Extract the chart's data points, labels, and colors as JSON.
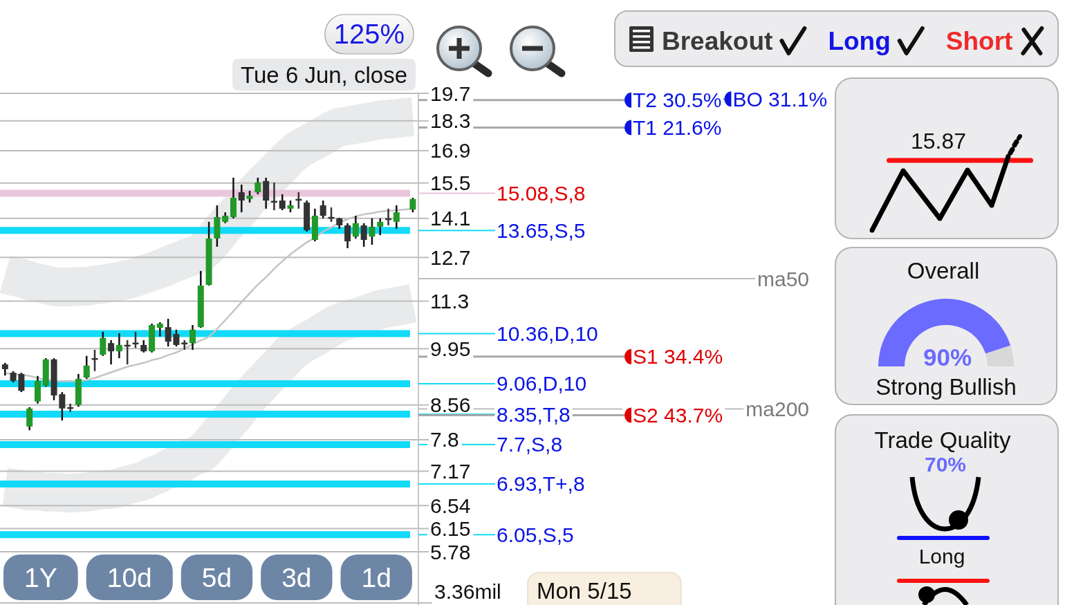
{
  "chart_data": [
    {
      "type": "candlestick",
      "categories": [
        null,
        null,
        null,
        null,
        null,
        null,
        null,
        null,
        null,
        null,
        null,
        null,
        null,
        null,
        null,
        null,
        null,
        null,
        null,
        null,
        null,
        null,
        null,
        null,
        null,
        null,
        null,
        null,
        null,
        null,
        null,
        null,
        null,
        null,
        null,
        null,
        null,
        null,
        null,
        null,
        null,
        null,
        null,
        null,
        null,
        null,
        null,
        null,
        null,
        null,
        null
      ],
      "ylim": [
        5.78,
        19.7
      ],
      "yticks": [
        19.7,
        18.3,
        16.9,
        15.5,
        14.1,
        12.7,
        11.3,
        9.95,
        8.56,
        7.8,
        7.17,
        6.54,
        6.15,
        5.78
      ],
      "log": true,
      "grid": "y",
      "tick_labels": "y",
      "ohlc": [
        [
          9.54,
          9.58,
          9.26,
          9.42
        ],
        [
          9.33,
          9.37,
          9.09,
          9.13
        ],
        [
          9.3,
          9.33,
          8.86,
          8.89
        ],
        [
          8.08,
          8.51,
          8.0,
          8.48
        ],
        [
          8.64,
          9.25,
          8.59,
          9.13
        ],
        [
          9.01,
          9.7,
          8.99,
          9.67
        ],
        [
          9.67,
          9.7,
          8.67,
          8.78
        ],
        [
          8.81,
          8.86,
          8.21,
          8.48
        ],
        [
          8.49,
          8.59,
          8.4,
          8.49
        ],
        [
          8.56,
          9.3,
          8.52,
          9.18
        ],
        [
          9.21,
          9.76,
          9.18,
          9.51
        ],
        [
          9.68,
          9.92,
          9.37,
          9.68
        ],
        [
          9.79,
          10.41,
          9.76,
          10.24
        ],
        [
          10.1,
          10.18,
          9.54,
          9.88
        ],
        [
          9.88,
          10.37,
          9.7,
          10.05
        ],
        [
          10.03,
          10.18,
          9.54,
          10.03
        ],
        [
          10.09,
          10.41,
          9.97,
          10.09
        ],
        [
          10.05,
          10.18,
          9.85,
          9.88
        ],
        [
          9.88,
          10.64,
          9.85,
          10.6
        ],
        [
          10.52,
          10.68,
          10.28,
          10.64
        ],
        [
          10.54,
          10.78,
          10.01,
          10.14
        ],
        [
          10.35,
          10.47,
          10.01,
          10.05
        ],
        [
          10.09,
          10.18,
          9.92,
          10.09
        ],
        [
          10.1,
          10.6,
          9.92,
          10.47
        ],
        [
          10.54,
          12.25,
          10.52,
          11.78
        ],
        [
          11.8,
          13.97,
          11.78,
          13.36
        ],
        [
          13.36,
          14.6,
          13.07,
          14.15
        ],
        [
          13.97,
          14.33,
          13.92,
          14.2
        ],
        [
          14.15,
          15.72,
          14.1,
          14.9
        ],
        [
          15.12,
          15.43,
          14.33,
          14.79
        ],
        [
          14.85,
          15.18,
          14.71,
          14.98
        ],
        [
          15.12,
          15.72,
          15.04,
          15.52
        ],
        [
          15.58,
          15.72,
          14.47,
          14.79
        ],
        [
          14.74,
          15.52,
          14.41,
          14.74
        ],
        [
          14.79,
          15.04,
          14.41,
          14.47
        ],
        [
          14.47,
          14.79,
          14.33,
          14.6
        ],
        [
          14.82,
          15.12,
          14.47,
          14.82
        ],
        [
          14.71,
          14.79,
          13.61,
          13.66
        ],
        [
          13.31,
          14.47,
          13.26,
          14.2
        ],
        [
          14.6,
          14.79,
          14.1,
          14.2
        ],
        [
          14.12,
          14.52,
          13.97,
          14.12
        ],
        [
          14.1,
          14.12,
          13.71,
          13.84
        ],
        [
          13.84,
          13.92,
          13.02,
          13.26
        ],
        [
          13.43,
          14.2,
          13.36,
          13.92
        ],
        [
          13.84,
          13.92,
          13.07,
          13.31
        ],
        [
          13.43,
          14.1,
          13.14,
          13.79
        ],
        [
          13.79,
          14.1,
          13.48,
          13.97
        ],
        [
          14.07,
          14.47,
          13.84,
          14.07
        ],
        [
          13.97,
          14.6,
          13.71,
          14.33
        ],
        null,
        [
          14.44,
          14.9,
          14.33,
          14.85
        ]
      ],
      "colors": [
        "#333333",
        "#333333",
        "#333333",
        "#22992a",
        "#22992a",
        "#22992a",
        "#333333",
        "#333333",
        "#333333",
        "#22992a",
        "#22992a",
        "#333333",
        "#22992a",
        "#333333",
        "#22992a",
        "#333333",
        "#333333",
        "#333333",
        "#22992a",
        "#22992a",
        "#333333",
        "#333333",
        "#333333",
        "#22992a",
        "#22992a",
        "#22992a",
        "#22992a",
        "#22992a",
        "#22992a",
        "#333333",
        "#22992a",
        "#22992a",
        "#333333",
        "#333333",
        "#333333",
        "#22992a",
        "#333333",
        "#333333",
        "#22992a",
        "#333333",
        "#333333",
        "#333333",
        "#333333",
        "#22992a",
        "#333333",
        "#22992a",
        "#22992a",
        "#333333",
        "#22992a",
        null,
        "#22992a"
      ],
      "series": [
        {
          "type": "line",
          "color": "#e9eaeb",
          "values": [
            12.14,
            12.07,
            12.02,
            11.93,
            11.87,
            11.81,
            11.75,
            11.73,
            11.74,
            11.75,
            11.76,
            11.8,
            11.83,
            11.87,
            11.92,
            11.97,
            12.04,
            12.14,
            12.22,
            12.32,
            12.43,
            12.54,
            12.65,
            12.75,
            12.87,
            null,
            null,
            13.83,
            14.16,
            14.51,
            14.91,
            15.24,
            15.59,
            15.92,
            16.28,
            16.65,
            16.95,
            17.17,
            17.37,
            17.58,
            17.82,
            17.99,
            18.06,
            18.13,
            18.2,
            18.27,
            18.35,
            18.38,
            18.42,
            18.47,
            18.5
          ]
        },
        {
          "type": "line",
          "color": "#e9eaeb",
          "values": [
            6.87,
            6.85,
            6.83,
            6.8,
            6.8,
            6.78,
            6.78,
            6.77,
            6.76,
            6.77,
            6.78,
            6.8,
            6.82,
            6.83,
            6.86,
            6.91,
            6.95,
            6.99,
            7.07,
            7.13,
            7.21,
            7.29,
            7.36,
            7.45,
            7.52,
            7.68,
            7.88,
            8.1,
            8.3,
            8.53,
            8.76,
            8.97,
            9.18,
            9.39,
            9.61,
            9.84,
            10.01,
            10.14,
            10.26,
            10.4,
            10.54,
            10.66,
            10.74,
            10.81,
            10.89,
            10.97,
            11.05,
            11.1,
            11.14,
            11.19,
            11.24
          ]
        },
        {
          "type": "line",
          "color": "#c4c4c4",
          "values": [
            9.32,
            9.3,
            9.28,
            9.25,
            9.2,
            null,
            9.13,
            9.12,
            9.12,
            9.13,
            9.15,
            9.2,
            9.27,
            9.34,
            9.41,
            9.48,
            9.53,
            9.58,
            9.65,
            9.7,
            9.78,
            9.85,
            9.96,
            10.07,
            10.17,
            10.28,
            10.49,
            10.74,
            11.0,
            11.27,
            11.54,
            11.81,
            12.05,
            12.32,
            12.57,
            12.81,
            13.02,
            13.22,
            13.39,
            13.61,
            13.76,
            13.94,
            14.07,
            14.17,
            14.25,
            14.3,
            14.36,
            14.39,
            14.41,
            14.44,
            14.47
          ]
        }
      ],
      "ref_lines": [
        {
          "axis": "y",
          "value": 15.08,
          "label": "15.08,S,8",
          "color": "#e9c6dc"
        },
        {
          "axis": "y",
          "value": 13.65,
          "label": "13.65,S,5",
          "color": "#12daf8"
        },
        {
          "axis": "y",
          "value": 10.36,
          "label": "10.36,D,10",
          "color": "#12daf8"
        },
        {
          "axis": "y",
          "value": 9.06,
          "label": "9.06,D,10",
          "color": "#12daf8"
        },
        {
          "axis": "y",
          "value": 8.35,
          "label": "8.35,T,8",
          "color": "#12daf8"
        },
        {
          "axis": "y",
          "value": 7.7,
          "label": "7.7,S,8",
          "color": "#12daf8"
        },
        {
          "axis": "y",
          "value": 6.93,
          "label": "6.93,T+,8",
          "color": "#12daf8"
        },
        {
          "axis": "y",
          "value": 6.05,
          "label": "6.05,S,5",
          "color": "#12daf8"
        },
        {
          "axis": "y",
          "value": 19.35,
          "label": "T2 30.5%",
          "color": "#a8a8a8"
        },
        {
          "axis": "y",
          "value": 19.4,
          "label": "BO 31.1%",
          "color": "#a8a8a8"
        },
        {
          "axis": "y",
          "value": 17.98,
          "label": "T1 21.6%",
          "color": "#a8a8a8"
        },
        {
          "axis": "y",
          "value": 9.74,
          "label": "S1 34.4%",
          "color": "#a8a8a8"
        },
        {
          "axis": "y",
          "value": 8.33,
          "label": "S2 43.7%",
          "color": "#a8a8a8"
        },
        {
          "axis": "y",
          "value": 12.0,
          "label": "ma50",
          "color": "#bdbdbd"
        },
        {
          "axis": "y",
          "value": 8.47,
          "label": "ma200",
          "color": "#bdbdbd"
        }
      ],
      "annotations": [
        "125%",
        "Tue 6 Jun, close",
        "3.36mil",
        "Mon 5/15"
      ]
    },
    {
      "type": "other",
      "annotations": [
        "1Y",
        "10d",
        "5d",
        "3d",
        "1d"
      ]
    },
    {
      "type": "other",
      "annotations": [
        "Breakout",
        "Long",
        "Short"
      ]
    },
    {
      "type": "other",
      "annotations": [
        "15.87"
      ]
    },
    {
      "type": "donut",
      "title": "Overall",
      "categories": [
        null,
        null
      ],
      "values": [
        90,
        10
      ],
      "colors": [
        "#6b6bff",
        "#d8d8d8"
      ],
      "value_labels": [
        "90%",
        null
      ],
      "annotations": [
        "Strong Bullish"
      ]
    },
    {
      "type": "other",
      "title": "Trade Quality",
      "annotations": [
        "70%",
        "Long"
      ]
    }
  ]
}
